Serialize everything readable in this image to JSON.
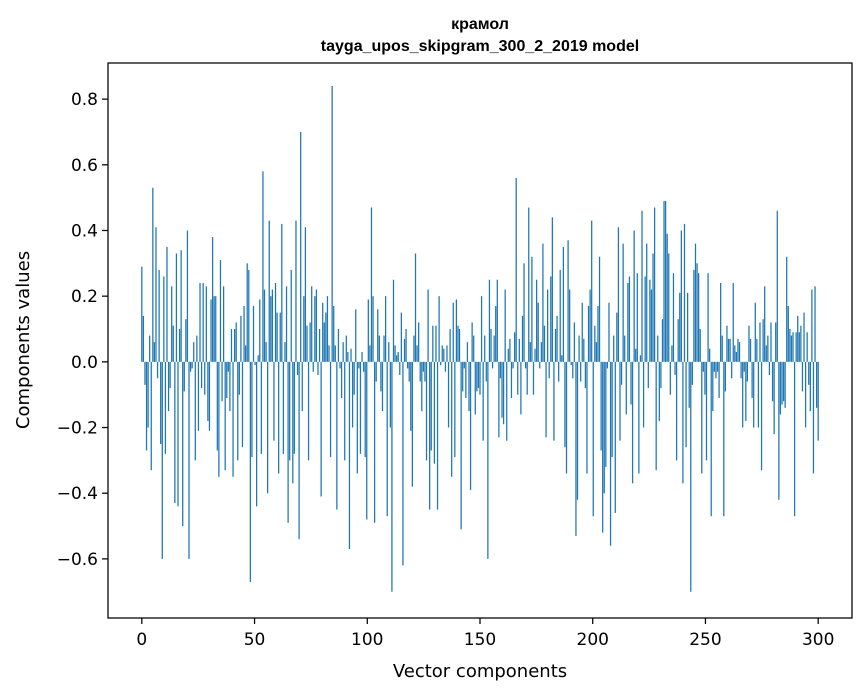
{
  "chart_data": {
    "type": "bar",
    "title": "крамол",
    "subtitle": "tayga_upos_skipgram_300_2_2019 model",
    "xlabel": "Vector components",
    "ylabel": "Components values",
    "xlim": [
      -15,
      315
    ],
    "ylim": [
      -0.78,
      0.91
    ],
    "xticks": [
      0,
      50,
      100,
      150,
      200,
      250,
      300
    ],
    "yticks": [
      -0.6,
      -0.4,
      -0.2,
      0.0,
      0.2,
      0.4,
      0.6,
      0.8
    ],
    "xtick_labels": [
      "0",
      "50",
      "100",
      "150",
      "200",
      "250",
      "300"
    ],
    "ytick_labels": [
      "−0.6",
      "−0.4",
      "−0.2",
      "0.0",
      "0.2",
      "0.4",
      "0.6",
      "0.8"
    ],
    "grid": false,
    "bar_color": "#1f77b4",
    "values": [
      0.29,
      0.14,
      -0.07,
      -0.27,
      -0.2,
      0.08,
      -0.33,
      0.53,
      0.06,
      0.41,
      -0.05,
      0.28,
      -0.25,
      -0.6,
      0.26,
      -0.28,
      0.35,
      -0.15,
      -0.08,
      0.23,
      0.11,
      -0.43,
      0.33,
      -0.44,
      0.1,
      0.34,
      -0.5,
      -0.09,
      0.13,
      0.4,
      -0.6,
      -0.03,
      -0.02,
      0.06,
      -0.3,
      0.08,
      -0.21,
      0.24,
      -0.08,
      0.24,
      -0.1,
      0.23,
      -0.18,
      -0.21,
      0.19,
      0.38,
      0.2,
      0.2,
      -0.27,
      -0.35,
      0.31,
      -0.12,
      0.23,
      -0.33,
      -0.11,
      -0.03,
      -0.15,
      0.1,
      -0.35,
      0.1,
      0.12,
      -0.3,
      -0.1,
      0.14,
      -0.26,
      0.17,
      0.05,
      0.3,
      0.28,
      -0.67,
      -0.29,
      0.17,
      -0.01,
      -0.44,
      0.02,
      0.19,
      -0.28,
      0.58,
      0.22,
      0.06,
      -0.4,
      0.43,
      0.2,
      0.22,
      -0.24,
      0.24,
      0.15,
      -0.34,
      0.15,
      0.42,
      -0.28,
      0.06,
      0.23,
      -0.49,
      -0.3,
      0.28,
      -0.37,
      -0.28,
      0.43,
      -0.04,
      -0.54,
      0.7,
      -0.15,
      0.2,
      0.41,
      0.11,
      -0.3,
      0.12,
      0.23,
      -0.03,
      0.2,
      0.22,
      -0.04,
      0.1,
      -0.41,
      0.18,
      0.12,
      0.15,
      0.2,
      0.05,
      -0.29,
      0.84,
      0.17,
      0.05,
      -0.45,
      0.1,
      -0.02,
      -0.11,
      0.06,
      -0.3,
      0.08,
      0.03,
      -0.57,
      0.04,
      -0.2,
      -0.1,
      0.16,
      -0.34,
      -0.02,
      -0.28,
      0.03,
      -0.03,
      -0.29,
      -0.48,
      0.19,
      0.05,
      0.47,
      0.2,
      -0.49,
      -0.06,
      0.16,
      0.08,
      -0.09,
      -0.15,
      0.08,
      0.2,
      -0.47,
      0.06,
      -0.2,
      -0.7,
      0.25,
      0.05,
      0.02,
      0.03,
      -0.04,
      0.15,
      -0.62,
      0.07,
      0.1,
      -0.02,
      -0.06,
      -0.21,
      -0.38,
      0.08,
      0.33,
      0.05,
      0.12,
      -0.06,
      -0.15,
      -0.03,
      -0.06,
      -0.3,
      0.22,
      -0.45,
      -0.27,
      0.11,
      -0.31,
      0.11,
      -0.45,
      0.2,
      -0.01,
      0.05,
      0.04,
      -0.03,
      0.05,
      -0.2,
      0.1,
      -0.35,
      0.18,
      -0.29,
      0.19,
      0.11,
      0.1,
      -0.51,
      -0.09,
      -0.02,
      -0.11,
      0.06,
      -0.15,
      -0.39,
      0.12,
      0.08,
      -0.16,
      -0.09,
      -0.08,
      -0.1,
      0.2,
      -0.24,
      0.08,
      -0.06,
      -0.6,
      0.25,
      0.1,
      -0.02,
      0.08,
      0.17,
      0.25,
      -0.23,
      -0.05,
      -0.17,
      -0.19,
      0.22,
      -0.24,
      0.04,
      0.07,
      -0.11,
      -0.02,
      0.09,
      0.56,
      -0.1,
      0.07,
      -0.16,
      0.14,
      0.3,
      -0.02,
      -0.1,
      0.47,
      0.06,
      0.32,
      -0.1,
      0.04,
      0.25,
      0.18,
      -0.02,
      0.06,
      0.36,
      0.11,
      -0.23,
      0.22,
      -0.05,
      0.26,
      0.44,
      -0.24,
      0.1,
      0.14,
      -0.06,
      0.28,
      0.02,
      0.35,
      -0.26,
      -0.34,
      0.37,
      0.22,
      -0.01,
      -0.05,
      0.12,
      -0.53,
      -0.42,
      0.08,
      -0.06,
      0.18,
      0.07,
      -0.08,
      -0.34,
      0.17,
      0.22,
      0.43,
      -0.47,
      0.11,
      0.06,
      0.17,
      0.32,
      -0.27,
      -0.52,
      -0.4,
      -0.32,
      -0.02,
      0.18,
      -0.56,
      -0.29,
      0.08,
      -0.46,
      0.15,
      0.41,
      -0.24,
      -0.07,
      0.36,
      0.08,
      -0.16,
      0.24,
      0.26,
      -0.13,
      -0.37,
      0.4,
      0.04,
      0.27,
      -0.34,
      0.02,
      0.46,
      -0.2,
      0.26,
      0.36,
      -0.08,
      0.25,
      0.22,
      0.33,
      0.47,
      -0.33,
      0.08,
      -0.18,
      -0.08,
      0.13,
      0.49,
      0.49,
      0.39,
      0.33,
      -0.1,
      0.05,
      0.27,
      -0.04,
      -0.3,
      0.13,
      0.21,
      0.4,
      -0.37,
      0.42,
      -0.26,
      0.21,
      -0.14,
      -0.7,
      -0.07,
      0.28,
      0.36,
      0.3,
      0.27,
      0.1,
      -0.34,
      -0.03,
      -0.1,
      -0.3,
      0.27,
      0.04,
      -0.47,
      -0.15,
      -0.03,
      -0.05,
      -0.03,
      -0.11,
      0.24,
      0.08,
      -0.47,
      -0.09,
      0.11,
      0.07,
      0.07,
      -0.05,
      0.24,
      0.05,
      0.03,
      0.07,
      0.06,
      -0.05,
      -0.2,
      -0.03,
      -0.18,
      -0.06,
      0.11,
      0.07,
      -0.11,
      -0.2,
      0.18,
      0.07,
      -0.2,
      0.12,
      -0.33,
      0.13,
      0.23,
      0.05,
      0.08,
      -0.04,
      0.12,
      -0.12,
      -0.22,
      0.12,
      0.46,
      -0.42,
      -0.16,
      -0.13,
      -0.12,
      -0.14,
      0.32,
      0.17,
      0.1,
      0.08,
      0.09,
      -0.47,
      0.09,
      0.14,
      0.09,
      0.11,
      -0.09,
      0.15,
      -0.2,
      0.09,
      -0.07,
      -0.15,
      0.22,
      -0.34,
      0.23,
      -0.14,
      -0.24
    ]
  }
}
